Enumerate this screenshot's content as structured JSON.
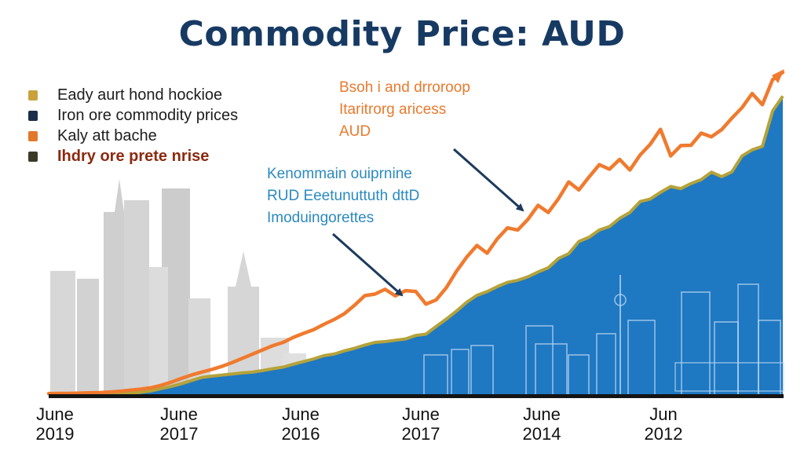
{
  "chart_data": {
    "type": "area",
    "title": "Commodity Price: AUD",
    "x_tick_labels": [
      {
        "month": "June",
        "year": "2019"
      },
      {
        "month": "June",
        "year": "2017"
      },
      {
        "month": "June",
        "year": "2016"
      },
      {
        "month": "June",
        "year": "2017"
      },
      {
        "month": "June",
        "year": "2014"
      },
      {
        "month": "Jun",
        "year": "2012"
      }
    ],
    "grid": false,
    "legend_position": "top-left",
    "legend": [
      {
        "label": "Eady aurt hond hockioe",
        "color": "#c9a23c"
      },
      {
        "label": "Iron ore commodity prices",
        "color": "#1c2f4a"
      },
      {
        "label": "Kaly att bache",
        "color": "#e0782b"
      },
      {
        "label": "Ihdry ore prete nrise",
        "color": "#3a3a28",
        "label_color": "#8c2a10"
      }
    ],
    "annotations": [
      {
        "lines": [
          "Bsoh i and drroroop",
          "Itaritrorg aricess",
          "AUD"
        ],
        "color": "#e87a2e",
        "target_series": "orange"
      },
      {
        "lines": [
          "Kenommain ouiprnine",
          "RUD Eeetunuttuth dttD",
          "Imoduingorettes"
        ],
        "color": "#2b8ac0",
        "target_series": "blue-area"
      }
    ],
    "series": [
      {
        "kind": "line",
        "color": "#f07a2e",
        "values": [
          0.5,
          0.6,
          0.6,
          0.7,
          0.8,
          0.9,
          1.1,
          1.4,
          1.8,
          2.2,
          2.7,
          3.6,
          4.8,
          6.2,
          7.5,
          8.6,
          9.6,
          10.8,
          12.2,
          13.8,
          15.4,
          17.0,
          18.6,
          19.8,
          21.7,
          23.2,
          24.6,
          26.6,
          28.4,
          30.6,
          33.8,
          37.4,
          38.0,
          39.8,
          37.3,
          39.3,
          39.0,
          34.2,
          35.8,
          40.4,
          46.6,
          51.9,
          56.3,
          53.4,
          58.8,
          62.9,
          62.1,
          66.1,
          71.4,
          68.7,
          73.9,
          80.2,
          77.2,
          82.1,
          86.7,
          85.0,
          88.7,
          84.7,
          90.3,
          94.4,
          100.0,
          90.0,
          93.9,
          94.0,
          98.6,
          97.2,
          99.9,
          104.2,
          108.2,
          113.5,
          109.3,
          118.7,
          121.5
        ]
      },
      {
        "kind": "area",
        "color": "#1f78c2",
        "edge_color": "#b5a33a",
        "values": [
          0,
          0,
          0,
          0,
          0,
          0,
          0,
          0.3,
          0.6,
          1.0,
          1.5,
          2.4,
          3.2,
          4.2,
          5.4,
          6.6,
          7.1,
          7.5,
          7.9,
          8.3,
          8.6,
          9.2,
          9.9,
          10.5,
          11.6,
          12.6,
          13.6,
          14.8,
          15.4,
          16.6,
          17.6,
          18.8,
          19.8,
          20.1,
          20.6,
          21.1,
          22.4,
          22.9,
          25.8,
          28.6,
          31.6,
          34.9,
          37.5,
          38.9,
          40.8,
          42.4,
          43.2,
          44.5,
          46.3,
          47.9,
          51.4,
          53.2,
          57.8,
          59.4,
          62.1,
          63.4,
          66.5,
          68.7,
          72.8,
          73.8,
          76.3,
          78.5,
          77.7,
          79.6,
          81.1,
          83.9,
          82.2,
          84.0,
          90.0,
          92.3,
          93.6,
          106.9,
          112.5
        ]
      }
    ]
  }
}
